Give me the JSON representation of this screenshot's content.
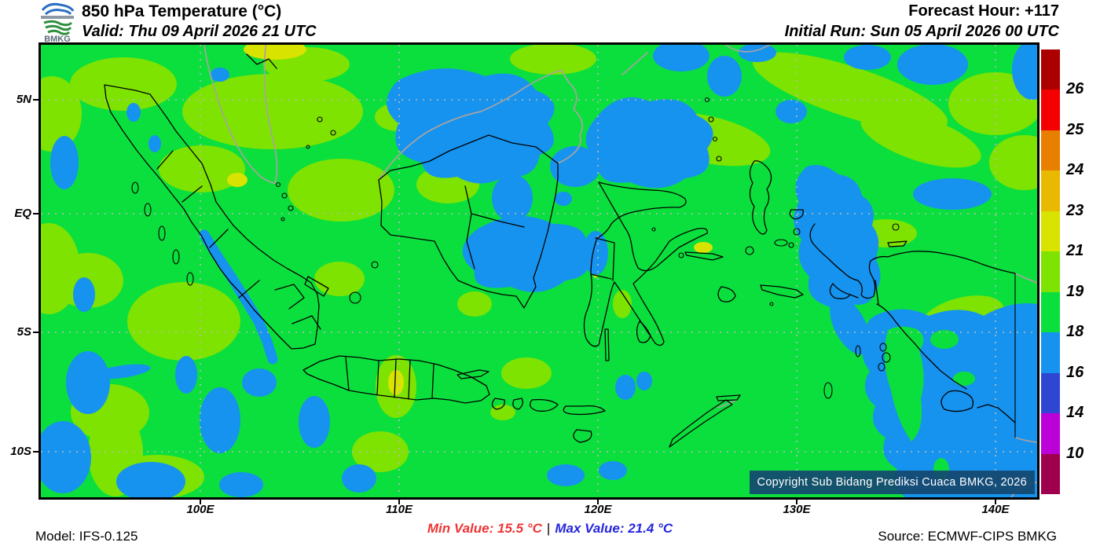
{
  "header": {
    "logo_text": "BMKG",
    "title": "850 hPa Temperature (°C)",
    "valid": "Valid: Thu 09 April 2026 21 UTC",
    "forecast_hour": "Forecast Hour: +117",
    "initial_run": "Initial Run: Sun 05 April 2026 00 UTC"
  },
  "map": {
    "lat_labels": [
      "5N",
      "EQ",
      "5S",
      "10S"
    ],
    "lon_labels": [
      "100E",
      "110E",
      "120E",
      "130E",
      "140E"
    ],
    "copyright": "Copyright Sub Bidang Prediksi Cuaca BMKG, 2026"
  },
  "colorbar": {
    "tick_labels": [
      "26",
      "25",
      "24",
      "23",
      "21",
      "19",
      "18",
      "16",
      "14",
      "10"
    ],
    "colors": [
      "#ac0000",
      "#f50000",
      "#e97f00",
      "#e9b800",
      "#d8e300",
      "#7ee300",
      "#0bdf3d",
      "#1693ef",
      "#2e46d2",
      "#bb00d8",
      "#9e004e"
    ]
  },
  "footer": {
    "model": "Model: IFS-0.125",
    "min_value": "Min Value: 15.5 °C",
    "separator": "|",
    "max_value": "Max Value: 21.4 °C",
    "source": "Source: ECMWF-CIPS BMKG"
  },
  "chart_data": {
    "type": "heatmap",
    "title": "850 hPa Temperature (°C)",
    "region": "Indonesia",
    "lon_range_deg_east": [
      92.0,
      142.2
    ],
    "lat_range_deg": [
      -12.4,
      7.4
    ],
    "colorbar_levels_c": [
      10,
      14,
      16,
      18,
      19,
      21,
      23,
      24,
      25,
      26
    ],
    "colorbar_colors": [
      "#ac0000",
      "#f50000",
      "#e97f00",
      "#e9b800",
      "#d8e300",
      "#7ee300",
      "#0bdf3d",
      "#1693ef",
      "#2e46d2",
      "#bb00d8",
      "#9e004e"
    ],
    "min_value_c": 15.5,
    "max_value_c": 21.4,
    "dominant_values": "Mostly 18-19 °C (green) with 19-21 °C (yellow-green) patches west of Sumatra, Malay Peninsula and north Papua; 16-18 °C (blue) over north-central Borneo, Maluku sea, the Barisan range of Sumatra, south of Java and the Arafura / south Papua corner"
  }
}
